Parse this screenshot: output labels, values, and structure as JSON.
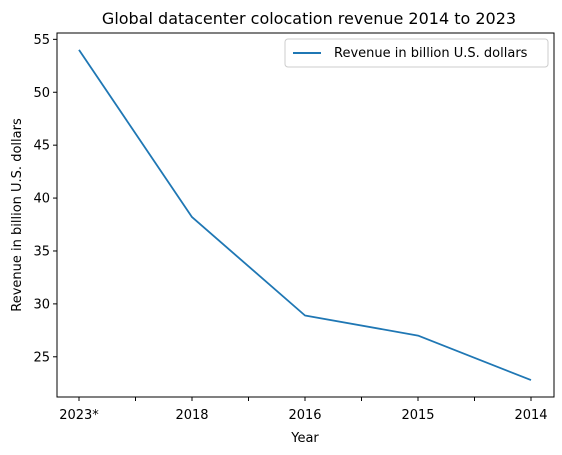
{
  "chart_data": {
    "type": "line",
    "title": "Global datacenter colocation revenue 2014 to 2023",
    "xlabel": "Year",
    "ylabel": "Revenue in billion U.S. dollars",
    "categories": [
      "2023*",
      "2018",
      "2016",
      "2015",
      "2014"
    ],
    "series": [
      {
        "name": "Revenue in billion U.S. dollars",
        "values": [
          54.0,
          38.2,
          28.9,
          27.0,
          22.8
        ],
        "color": "#1f77b4"
      }
    ],
    "ylim": [
      21.2,
      55.6
    ],
    "yticks": [
      "25",
      "30",
      "35",
      "40",
      "45",
      "50",
      "55"
    ],
    "grid": false,
    "legend_position": "top-right"
  }
}
